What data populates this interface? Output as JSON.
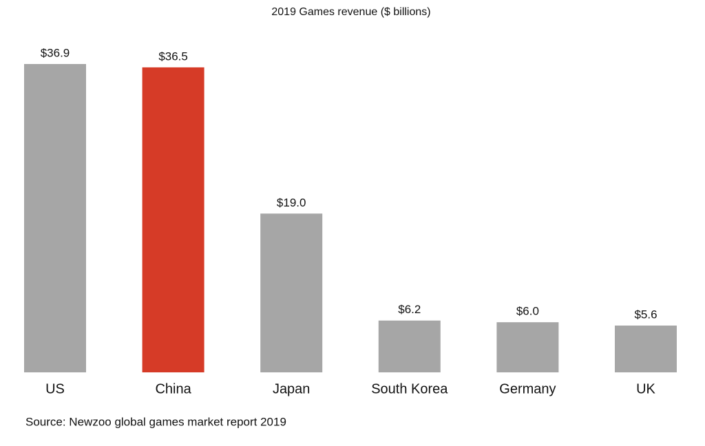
{
  "chart_data": {
    "type": "bar",
    "title": "2019 Games revenue ($ billions)",
    "categories": [
      "US",
      "China",
      "Japan",
      "South Korea",
      "Germany",
      "UK"
    ],
    "values": [
      36.9,
      36.5,
      19.0,
      6.2,
      6.0,
      5.6
    ],
    "value_labels": [
      "$36.9",
      "$36.5",
      "$19.0",
      "$6.2",
      "$6.0",
      "$5.6"
    ],
    "colors": [
      "#a6a6a6",
      "#d63b27",
      "#a6a6a6",
      "#a6a6a6",
      "#a6a6a6",
      "#a6a6a6"
    ],
    "source": "Source: Newzoo global games market report 2019"
  }
}
